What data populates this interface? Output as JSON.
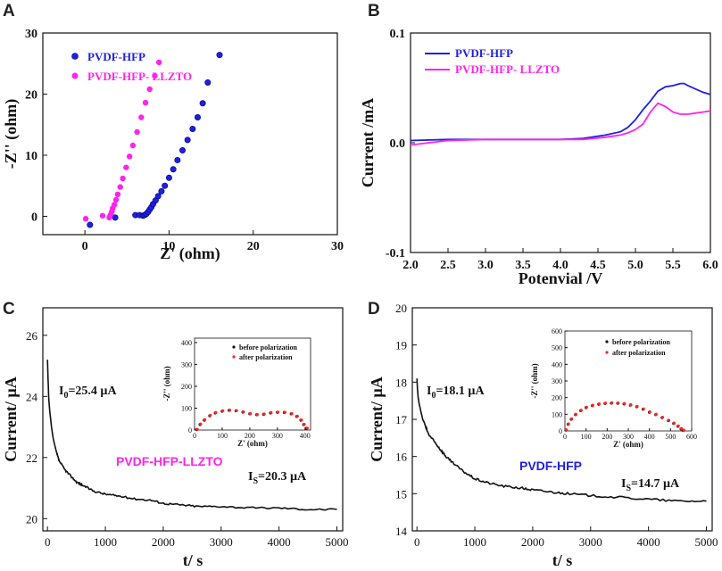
{
  "colors": {
    "blue": "#1f1fe0",
    "magenta": "#ff22ee",
    "black": "#111111",
    "red": "#ff2222"
  },
  "chart_data": [
    {
      "panel": "A",
      "type": "scatter",
      "xlabel": "Z' (ohm)",
      "ylabel": "-Z'' (ohm)",
      "xlim": [
        -5,
        30
      ],
      "ylim": [
        -3,
        30
      ],
      "xticks": [
        "0",
        "10",
        "20",
        "30"
      ],
      "yticks": [
        "0",
        "10",
        "20",
        "30"
      ],
      "legend_position": "top-left",
      "series": [
        {
          "name": "PVDF-HFP",
          "color": "blue",
          "points": [
            [
              0.6,
              -1.4
            ],
            [
              3.6,
              -0.2
            ],
            [
              6.0,
              0.2
            ],
            [
              6.5,
              0.2
            ],
            [
              6.9,
              0.1
            ],
            [
              7.1,
              0.2
            ],
            [
              7.3,
              0.4
            ],
            [
              7.5,
              0.7
            ],
            [
              7.7,
              1.1
            ],
            [
              7.9,
              1.5
            ],
            [
              8.1,
              2.0
            ],
            [
              8.4,
              2.6
            ],
            [
              8.7,
              3.3
            ],
            [
              9.1,
              4.1
            ],
            [
              9.5,
              5.0
            ],
            [
              10.0,
              6.3
            ],
            [
              10.5,
              7.7
            ],
            [
              11.0,
              9.2
            ],
            [
              11.6,
              10.8
            ],
            [
              12.2,
              12.5
            ],
            [
              12.8,
              14.3
            ],
            [
              13.4,
              16.2
            ],
            [
              14.0,
              18.5
            ],
            [
              14.6,
              21.9
            ],
            [
              16.0,
              26.4
            ]
          ]
        },
        {
          "name": "PVDF-HFP- LLZTO",
          "color": "magenta",
          "points": [
            [
              0.1,
              -0.4
            ],
            [
              2.1,
              0.1
            ],
            [
              2.9,
              -0.2
            ],
            [
              3.0,
              0.1
            ],
            [
              3.1,
              0.4
            ],
            [
              3.2,
              0.8
            ],
            [
              3.3,
              1.3
            ],
            [
              3.5,
              1.9
            ],
            [
              3.7,
              2.7
            ],
            [
              3.9,
              3.6
            ],
            [
              4.2,
              4.8
            ],
            [
              4.5,
              6.2
            ],
            [
              4.9,
              8.0
            ],
            [
              5.3,
              9.8
            ],
            [
              5.7,
              11.6
            ],
            [
              6.2,
              13.8
            ],
            [
              6.7,
              16.2
            ],
            [
              7.2,
              18.6
            ],
            [
              7.7,
              20.8
            ],
            [
              8.3,
              23.0
            ],
            [
              8.8,
              25.2
            ]
          ]
        }
      ]
    },
    {
      "panel": "B",
      "type": "line",
      "xlabel": "Potenvial /V",
      "ylabel": "Current /mA",
      "xlim": [
        2.0,
        6.0
      ],
      "ylim": [
        -0.1,
        0.1
      ],
      "xticks": [
        "2.0",
        "2.5",
        "3.0",
        "3.5",
        "4.0",
        "4.5",
        "5.0",
        "5.5",
        "6.0"
      ],
      "yticks": [
        "-0.1",
        "0.0",
        "0.1"
      ],
      "legend_position": "top-left",
      "series": [
        {
          "name": "PVDF-HFP",
          "color": "blue",
          "x": [
            2.0,
            2.5,
            3.0,
            3.5,
            4.0,
            4.3,
            4.6,
            4.8,
            4.9,
            5.0,
            5.1,
            5.2,
            5.3,
            5.4,
            5.5,
            5.6,
            5.65,
            5.7,
            5.8,
            5.9,
            6.0
          ],
          "y": [
            0.002,
            0.003,
            0.003,
            0.003,
            0.003,
            0.004,
            0.007,
            0.01,
            0.014,
            0.021,
            0.03,
            0.038,
            0.047,
            0.051,
            0.052,
            0.054,
            0.054,
            0.052,
            0.049,
            0.046,
            0.044
          ]
        },
        {
          "name": "PVDF-HFP- LLZTO",
          "color": "magenta",
          "x": [
            2.0,
            2.5,
            3.0,
            3.5,
            4.0,
            4.3,
            4.6,
            4.8,
            4.9,
            5.0,
            5.1,
            5.2,
            5.3,
            5.4,
            5.5,
            5.6,
            5.7,
            5.8,
            5.9,
            6.0
          ],
          "y": [
            -0.002,
            0.002,
            0.003,
            0.003,
            0.003,
            0.003,
            0.005,
            0.007,
            0.009,
            0.012,
            0.017,
            0.028,
            0.036,
            0.033,
            0.028,
            0.026,
            0.026,
            0.027,
            0.028,
            0.029
          ]
        }
      ]
    },
    {
      "panel": "C",
      "type": "line",
      "xlabel": "t/ s",
      "ylabel": "Current/ µA",
      "xlim": [
        -80,
        5100
      ],
      "ylim": [
        19.6,
        26.9
      ],
      "xticks": [
        "0",
        "1000",
        "2000",
        "3000",
        "4000",
        "5000"
      ],
      "yticks": [
        "20",
        "22",
        "24",
        "26"
      ],
      "annotations": [
        {
          "main": "I",
          "sub": "0",
          "rest": "=25.4 µA"
        },
        {
          "main": "I",
          "sub": "S",
          "rest": "=20.3 µA"
        }
      ],
      "series_label": "PVDF-HFP-LLZTO",
      "series": [
        {
          "name": "PVDF-HFP-LLZTO",
          "color": "black",
          "x": [
            0,
            10,
            20,
            40,
            70,
            100,
            150,
            200,
            300,
            400,
            500,
            600,
            800,
            1000,
            1200,
            1500,
            1800,
            2000,
            2300,
            2600,
            3000,
            3500,
            4000,
            4500,
            5000
          ],
          "y": [
            25.2,
            24.6,
            24.0,
            23.5,
            23.0,
            22.6,
            22.2,
            21.9,
            21.6,
            21.4,
            21.2,
            21.1,
            20.9,
            20.8,
            20.75,
            20.65,
            20.6,
            20.5,
            20.45,
            20.4,
            20.4,
            20.35,
            20.35,
            20.3,
            20.3
          ]
        }
      ],
      "inset": {
        "type": "scatter",
        "xlabel": "Z' (ohm)",
        "ylabel": "-Z'' (ohm)",
        "xlim": [
          0,
          420
        ],
        "ylim": [
          0,
          420
        ],
        "xticks": [
          "0",
          "100",
          "200",
          "300",
          "400"
        ],
        "yticks": [
          "0",
          "100",
          "200",
          "300",
          "400"
        ],
        "series": [
          {
            "name": "before polarization",
            "color": "black",
            "points": [
              [
                8,
                2
              ],
              [
                20,
                25
              ],
              [
                35,
                45
              ],
              [
                55,
                65
              ],
              [
                75,
                78
              ],
              [
                100,
                86
              ],
              [
                125,
                90
              ],
              [
                150,
                88
              ],
              [
                175,
                82
              ],
              [
                200,
                74
              ],
              [
                225,
                70
              ],
              [
                250,
                72
              ],
              [
                275,
                78
              ],
              [
                300,
                81
              ],
              [
                325,
                80
              ],
              [
                350,
                74
              ],
              [
                370,
                62
              ],
              [
                385,
                45
              ],
              [
                395,
                25
              ],
              [
                405,
                8
              ]
            ]
          },
          {
            "name": "after polarization",
            "color": "red",
            "points": [
              [
                10,
                3
              ],
              [
                22,
                27
              ],
              [
                37,
                47
              ],
              [
                57,
                67
              ],
              [
                77,
                80
              ],
              [
                102,
                88
              ],
              [
                127,
                91
              ],
              [
                152,
                89
              ],
              [
                177,
                83
              ],
              [
                202,
                75
              ],
              [
                227,
                71
              ],
              [
                252,
                73
              ],
              [
                277,
                79
              ],
              [
                302,
                82
              ],
              [
                327,
                81
              ],
              [
                352,
                75
              ],
              [
                372,
                63
              ],
              [
                387,
                46
              ],
              [
                397,
                26
              ],
              [
                408,
                9
              ]
            ]
          }
        ]
      }
    },
    {
      "panel": "D",
      "type": "line",
      "xlabel": "t/ s",
      "ylabel": "Current/ µA",
      "xlim": [
        -80,
        5100
      ],
      "ylim": [
        14.0,
        20.0
      ],
      "xticks": [
        "0",
        "1000",
        "2000",
        "3000",
        "4000",
        "5000"
      ],
      "yticks": [
        "14",
        "15",
        "16",
        "17",
        "18",
        "19",
        "20"
      ],
      "annotations": [
        {
          "main": "I",
          "sub": "0",
          "rest": "=18.1 µA"
        },
        {
          "main": "I",
          "sub": "S",
          "rest": "=14.7 µA"
        }
      ],
      "series_label": "PVDF-HFP",
      "series": [
        {
          "name": "PVDF-HFP",
          "color": "black",
          "x": [
            0,
            10,
            20,
            40,
            70,
            100,
            150,
            200,
            300,
            400,
            500,
            600,
            800,
            1000,
            1200,
            1500,
            1800,
            2000,
            2300,
            2600,
            3000,
            3500,
            4000,
            4500,
            5000
          ],
          "y": [
            18.1,
            17.8,
            17.6,
            17.4,
            17.2,
            17.0,
            16.8,
            16.6,
            16.4,
            16.2,
            16.0,
            15.85,
            15.6,
            15.4,
            15.3,
            15.2,
            15.15,
            15.1,
            15.05,
            15.0,
            14.95,
            14.9,
            14.85,
            14.8,
            14.8
          ]
        }
      ],
      "inset": {
        "type": "scatter",
        "xlabel": "Z' (ohm)",
        "ylabel": "-Z'' (ohm)",
        "xlim": [
          0,
          600
        ],
        "ylim": [
          0,
          600
        ],
        "xticks": [
          "0",
          "100",
          "200",
          "300",
          "400",
          "500",
          "600"
        ],
        "yticks": [
          "0",
          "100",
          "200",
          "300",
          "400",
          "500",
          "600"
        ],
        "series": [
          {
            "name": "before polarization",
            "color": "black",
            "points": [
              [
                5,
                5
              ],
              [
                15,
                40
              ],
              [
                30,
                70
              ],
              [
                50,
                98
              ],
              [
                75,
                122
              ],
              [
                100,
                140
              ],
              [
                130,
                152
              ],
              [
                160,
                160
              ],
              [
                190,
                165
              ],
              [
                220,
                167
              ],
              [
                250,
                166
              ],
              [
                280,
                162
              ],
              [
                310,
                155
              ],
              [
                340,
                145
              ],
              [
                370,
                130
              ],
              [
                400,
                112
              ],
              [
                430,
                98
              ],
              [
                460,
                80
              ],
              [
                490,
                62
              ],
              [
                515,
                45
              ],
              [
                535,
                28
              ],
              [
                550,
                12
              ],
              [
                560,
                3
              ]
            ]
          },
          {
            "name": "after polarization",
            "color": "red",
            "points": [
              [
                7,
                6
              ],
              [
                17,
                42
              ],
              [
                32,
                72
              ],
              [
                52,
                100
              ],
              [
                77,
                124
              ],
              [
                102,
                142
              ],
              [
                132,
                154
              ],
              [
                162,
                162
              ],
              [
                192,
                167
              ],
              [
                222,
                169
              ],
              [
                252,
                168
              ],
              [
                282,
                164
              ],
              [
                312,
                157
              ],
              [
                342,
                147
              ],
              [
                372,
                132
              ],
              [
                402,
                114
              ],
              [
                432,
                100
              ],
              [
                462,
                82
              ],
              [
                492,
                64
              ],
              [
                517,
                47
              ],
              [
                537,
                30
              ],
              [
                552,
                14
              ],
              [
                563,
                4
              ]
            ]
          }
        ]
      }
    }
  ]
}
